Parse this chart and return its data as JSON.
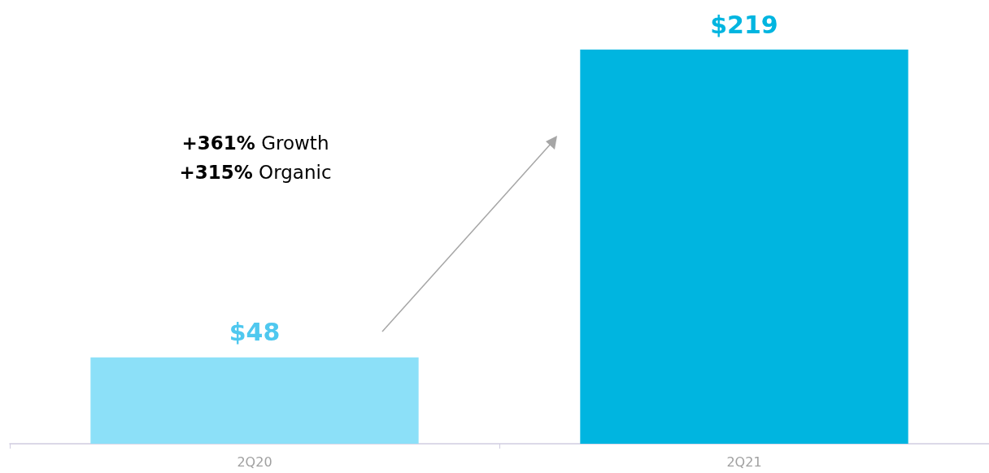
{
  "chart_data": {
    "type": "bar",
    "categories": [
      "2Q20",
      "2Q21"
    ],
    "values": [
      48,
      219
    ],
    "colors": [
      "#8ce0f8",
      "#00b5e0"
    ],
    "value_labels": [
      "$48",
      "$219"
    ],
    "annotations": [
      "+361% Growth",
      "+315% Organic"
    ]
  }
}
